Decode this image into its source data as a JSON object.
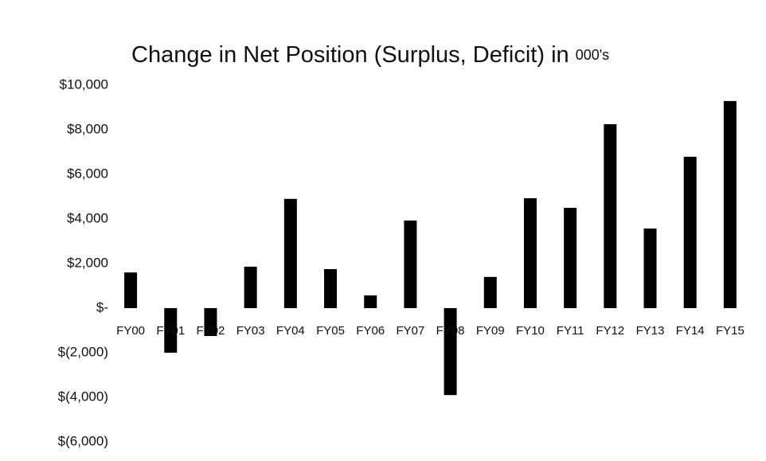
{
  "chart_data": {
    "type": "bar",
    "title": "Change in Net Position (Surplus, Deficit) in",
    "title_unit": "000's",
    "categories": [
      "FY00",
      "FY01",
      "FY02",
      "FY03",
      "FY04",
      "FY05",
      "FY06",
      "FY07",
      "FY08",
      "FY09",
      "FY10",
      "FY11",
      "FY12",
      "FY13",
      "FY14",
      "FY15"
    ],
    "values": [
      1600,
      -2000,
      -1250,
      1860,
      4900,
      1750,
      570,
      3930,
      -3900,
      1400,
      4930,
      4500,
      8250,
      3570,
      6790,
      9290
    ],
    "color": "#000000",
    "ylim": [
      -6000,
      10000
    ],
    "yticks": [
      {
        "value": -6000,
        "label": "$(6,000)"
      },
      {
        "value": -4000,
        "label": "$(4,000)"
      },
      {
        "value": -2000,
        "label": "$(2,000)"
      },
      {
        "value": 0,
        "label": "$-"
      },
      {
        "value": 2000,
        "label": "$2,000"
      },
      {
        "value": 4000,
        "label": "$4,000"
      },
      {
        "value": 6000,
        "label": "$6,000"
      },
      {
        "value": 8000,
        "label": "$8,000"
      },
      {
        "value": 10000,
        "label": "$10,000"
      }
    ],
    "grid": false
  }
}
